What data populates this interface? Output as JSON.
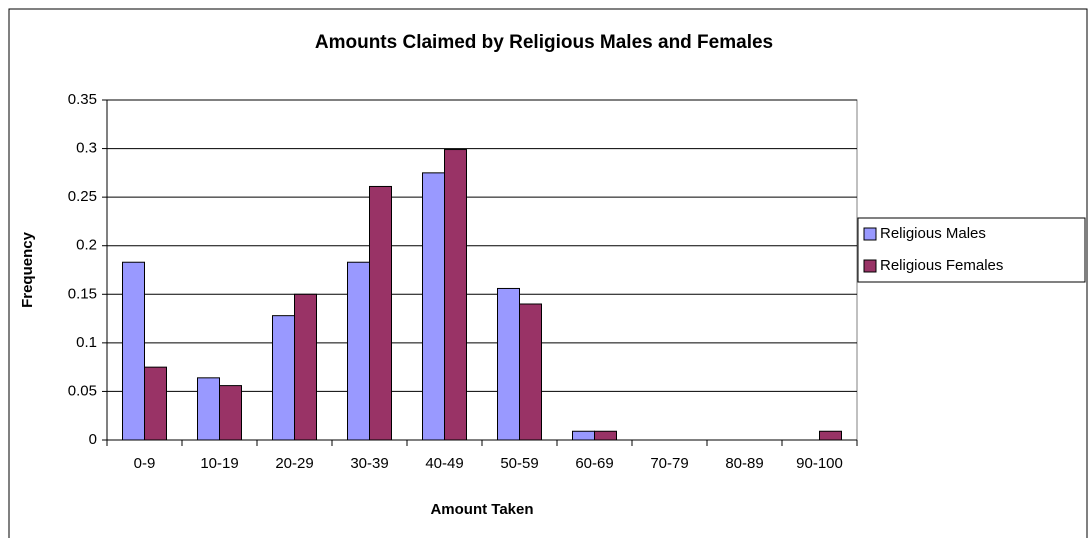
{
  "chart_data": {
    "type": "bar",
    "title": "Amounts Claimed by Religious Males and Females",
    "x_label": "Amount Taken",
    "y_label": "Frequency",
    "categories": [
      "0-9",
      "10-19",
      "20-29",
      "30-39",
      "40-49",
      "50-59",
      "60-69",
      "70-79",
      "80-89",
      "90-100"
    ],
    "series": [
      {
        "name": "Religious Males",
        "color": "#9999ff",
        "values": [
          0.183,
          0.064,
          0.128,
          0.183,
          0.275,
          0.156,
          0.009,
          0,
          0,
          0
        ]
      },
      {
        "name": "Religious Females",
        "color": "#993366",
        "values": [
          0.075,
          0.056,
          0.15,
          0.261,
          0.299,
          0.14,
          0.009,
          0,
          0,
          0.009
        ]
      }
    ],
    "ylim": [
      0,
      0.35
    ],
    "yticks": [
      0,
      0.05,
      0.1,
      0.15,
      0.2,
      0.25,
      0.3,
      0.35
    ],
    "grid": true,
    "legend": "right"
  }
}
